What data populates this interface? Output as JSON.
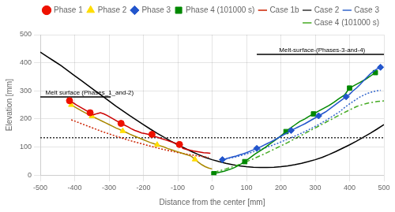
{
  "chart_data": {
    "type": "line",
    "xlabel": "Distance from the center [mm]",
    "ylabel": "Elevation [mm]",
    "xlim": [
      -500,
      500
    ],
    "ylim": [
      0,
      500
    ],
    "xticks": [
      -500,
      -400,
      -300,
      -200,
      -100,
      0,
      100,
      200,
      300,
      400,
      500
    ],
    "yticks": [
      0,
      100,
      200,
      300,
      400,
      500
    ],
    "grid": true,
    "legend": "upper right",
    "annotations": [
      {
        "text": "Melt surface (Phases_1_and-2)",
        "x": -485,
        "y": 283
      },
      {
        "text": "Melt-surface-(Phases-3-and-4)",
        "x": 195,
        "y": 434
      }
    ],
    "series": [
      {
        "name": "Phase 1",
        "type": "scatter",
        "marker": "circle",
        "color": "#ee1100",
        "x": [
          -415,
          -355,
          -265,
          -175,
          -95
        ],
        "values": [
          265,
          222,
          184,
          145,
          109
        ]
      },
      {
        "type": "line",
        "line_style": "solid",
        "color": "#cc0000",
        "x": [
          -415,
          -405,
          -395,
          -385,
          -375,
          -365,
          -355,
          -345,
          -335,
          -325,
          -315,
          -305,
          -295,
          -285,
          -275,
          -265,
          -255,
          -245,
          -235,
          -225,
          -215,
          -205,
          -195,
          -185,
          -175,
          -165,
          -155,
          -145,
          -135,
          -125,
          -115,
          -105,
          -95,
          -85,
          -75,
          -65,
          -55,
          -45,
          -35,
          -25,
          -15,
          -5
        ],
        "values": [
          265,
          258,
          250,
          243,
          236,
          229,
          222,
          215,
          219,
          222,
          218,
          212,
          205,
          198,
          191,
          184,
          178,
          172,
          165,
          159,
          155,
          150,
          148,
          145,
          141,
          137,
          133,
          129,
          125,
          121,
          117,
          113,
          109,
          95,
          92,
          89,
          86,
          84,
          82,
          80,
          79,
          78
        ]
      },
      {
        "name": "Phase 2",
        "type": "scatter",
        "marker": "triangle",
        "color": "#ffdd00",
        "x": [
          -410,
          -350,
          -260,
          -160,
          -50
        ],
        "values": [
          250,
          210,
          157,
          108,
          56
        ]
      },
      {
        "type": "line",
        "line_style": "solid",
        "color": "#aa8800",
        "x": [
          -410,
          -400,
          -390,
          -380,
          -365,
          -350,
          -340,
          -330,
          -320,
          -310,
          -300,
          -290,
          -280,
          -270,
          -260,
          -250,
          -240,
          -230,
          -220,
          -210,
          -200,
          -190,
          -180,
          -170,
          -160,
          -150,
          -140,
          -130,
          -120,
          -110,
          -100,
          -90,
          -80,
          -70,
          -60,
          -50,
          -40,
          -30,
          -20,
          -10,
          0
        ],
        "values": [
          250,
          243,
          236,
          229,
          219,
          210,
          204,
          198,
          192,
          186,
          180,
          174,
          168,
          163,
          157,
          152,
          146,
          141,
          136,
          131,
          126,
          121,
          116,
          112,
          108,
          104,
          100,
          95,
          91,
          87,
          83,
          79,
          75,
          71,
          67,
          56,
          46,
          37,
          30,
          25,
          22
        ]
      },
      {
        "name": "Phase 3",
        "type": "scatter",
        "marker": "diamond",
        "color": "#2255cc",
        "x": [
          30,
          130,
          230,
          310,
          390,
          490
        ],
        "values": [
          55,
          95,
          159,
          211,
          279,
          384
        ]
      },
      {
        "type": "line",
        "line_style": "solid",
        "color": "#2255cc",
        "x": [
          30,
          40,
          50,
          60,
          70,
          80,
          90,
          100,
          110,
          120,
          130,
          140,
          150,
          160,
          170,
          180,
          190,
          200,
          210,
          220,
          230,
          240,
          250,
          260,
          270,
          280,
          290,
          300,
          310,
          320,
          330,
          340,
          350,
          360,
          370,
          380,
          390,
          400,
          410,
          420,
          430,
          440,
          450,
          460,
          470,
          480,
          490
        ],
        "values": [
          55,
          58,
          62,
          65,
          68,
          72,
          76,
          80,
          85,
          90,
          95,
          100,
          106,
          112,
          118,
          124,
          131,
          138,
          145,
          152,
          159,
          165,
          171,
          177,
          183,
          190,
          197,
          204,
          211,
          218,
          225,
          234,
          243,
          252,
          261,
          270,
          279,
          288,
          300,
          310,
          322,
          335,
          348,
          360,
          370,
          378,
          384
        ]
      },
      {
        "name": "Phase 4 (101000 s)",
        "type": "scatter",
        "marker": "square",
        "color": "#008800",
        "x": [
          5,
          95,
          215,
          295,
          400,
          475
        ],
        "values": [
          5,
          48,
          155,
          218,
          310,
          365
        ]
      },
      {
        "type": "line",
        "line_style": "solid",
        "color": "#008800",
        "x": [
          5,
          15,
          25,
          35,
          45,
          55,
          65,
          75,
          85,
          95,
          105,
          115,
          125,
          135,
          145,
          155,
          165,
          175,
          185,
          195,
          205,
          215,
          225,
          240,
          255,
          270,
          280,
          295,
          310,
          325,
          340,
          355,
          370,
          385,
          400,
          415,
          430,
          445,
          460,
          475
        ],
        "values": [
          5,
          8,
          11,
          14,
          18,
          22,
          27,
          33,
          40,
          48,
          57,
          66,
          75,
          83,
          91,
          99,
          108,
          117,
          126,
          135,
          145,
          155,
          165,
          178,
          191,
          200,
          208,
          218,
          228,
          238,
          248,
          260,
          273,
          285,
          310,
          320,
          330,
          340,
          352,
          365
        ]
      },
      {
        "name": "Case 1b",
        "type": "line",
        "line_style": "dotted",
        "color": "#cc2200",
        "x": [
          -410,
          -395,
          -380,
          -365,
          -350,
          -335,
          -320,
          -305,
          -290,
          -275,
          -260,
          -245,
          -230,
          -215,
          -200,
          -185,
          -170,
          -155,
          -140,
          -125,
          -110,
          -95,
          -80,
          -65,
          -50,
          -35,
          -20,
          -10
        ],
        "values": [
          197,
          190,
          183,
          176,
          169,
          162,
          155,
          149,
          143,
          137,
          131,
          125,
          120,
          115,
          110,
          105,
          100,
          95,
          91,
          87,
          83,
          79,
          76,
          73,
          70,
          67,
          65,
          63
        ]
      },
      {
        "name": "Case 2",
        "type": "line",
        "line_style": "dotted",
        "color": "#333333",
        "x": [
          -500,
          500
        ],
        "values": [
          133,
          133
        ]
      },
      {
        "name": "Case 3",
        "type": "line",
        "line_style": "dotted",
        "color": "#3366cc",
        "x": [
          30,
          50,
          70,
          90,
          110,
          130,
          150,
          170,
          190,
          210,
          230,
          250,
          270,
          290,
          310,
          330,
          350,
          370,
          390,
          410,
          430,
          450,
          470,
          490
        ],
        "values": [
          55,
          60,
          65,
          72,
          79,
          87,
          95,
          104,
          113,
          123,
          133,
          144,
          155,
          167,
          180,
          194,
          209,
          225,
          245,
          262,
          278,
          290,
          298,
          302
        ]
      },
      {
        "name": "Case 4 (101000 s)",
        "type": "line",
        "line_style": "dashdot",
        "color": "#44aa22",
        "x": [
          5,
          20,
          40,
          60,
          80,
          100,
          120,
          140,
          160,
          180,
          200,
          220,
          240,
          260,
          280,
          300,
          320,
          340,
          360,
          380,
          400,
          420,
          440,
          460,
          480,
          500
        ],
        "values": [
          10,
          15,
          22,
          30,
          38,
          48,
          58,
          69,
          80,
          92,
          104,
          116,
          129,
          142,
          155,
          168,
          181,
          194,
          207,
          220,
          232,
          244,
          252,
          258,
          262,
          264
        ]
      },
      {
        "type": "line",
        "line_style": "solid",
        "color": "#000000",
        "x": [
          -500,
          -295
        ],
        "values": [
          278,
          278
        ]
      },
      {
        "type": "line",
        "line_style": "solid",
        "color": "#000000",
        "x": [
          130,
          500
        ],
        "values": [
          430,
          430
        ]
      },
      {
        "type": "line",
        "line_style": "solid",
        "color": "#000000",
        "x": [
          -500,
          -480,
          -460,
          -440,
          -420,
          -400,
          -380,
          -360,
          -340,
          -320,
          -300,
          -280,
          -260,
          -240,
          -220,
          -200,
          -180,
          -160,
          -140,
          -120,
          -100,
          -80,
          -60,
          -40,
          -20,
          0,
          20,
          40,
          60,
          80,
          100,
          120,
          140,
          160,
          180,
          200,
          220,
          240,
          260,
          280,
          300,
          320,
          340,
          360,
          380,
          400,
          420,
          440,
          460,
          480,
          500
        ],
        "values": [
          438,
          422,
          406,
          390,
          372,
          354,
          336,
          318,
          300,
          282,
          264,
          246,
          229,
          212,
          196,
          180,
          164,
          149,
          135,
          121,
          108,
          96,
          84,
          73,
          63,
          55,
          48,
          42,
          37,
          33,
          30,
          28,
          27,
          27,
          28,
          30,
          33,
          37,
          42,
          48,
          55,
          63,
          73,
          84,
          96,
          108,
          121,
          135,
          149,
          164,
          180
        ]
      }
    ]
  }
}
